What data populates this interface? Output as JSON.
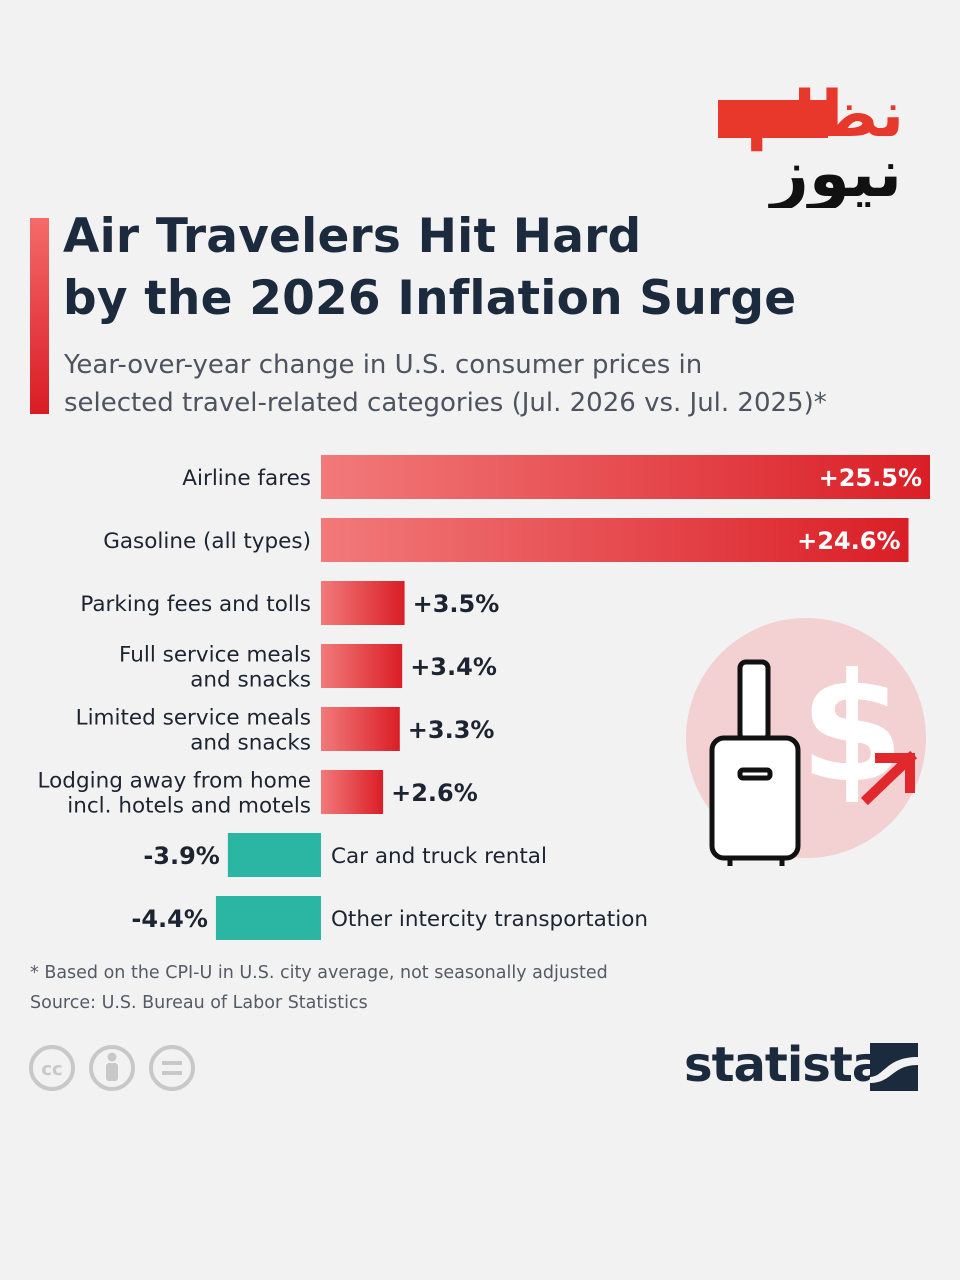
{
  "header": {
    "title_line1": "Air Travelers Hit Hard",
    "title_line2": "by the 2026 Inflation Surge",
    "subtitle_line1": "Year-over-year change in U.S. consumer prices in",
    "subtitle_line2": "selected travel-related categories (Jul. 2026 vs. Jul. 2025)*"
  },
  "logo_badge": {
    "top_text": "نظام",
    "bottom_text": "نیوز",
    "top_color": "#e8382c",
    "bottom_color": "#111111"
  },
  "illustration": {
    "icons": [
      "suitcase-icon",
      "dollar-icon",
      "arrow-up-right-icon"
    ],
    "circle_color": "#f3d0d1",
    "accent_color": "#e0282d"
  },
  "chart_data": {
    "type": "bar",
    "orientation": "horizontal",
    "unit": "%",
    "categories": [
      [
        "Airline fares"
      ],
      [
        "Gasoline (all types)"
      ],
      [
        "Parking fees and tolls"
      ],
      [
        "Full service meals",
        "and snacks"
      ],
      [
        "Limited service meals",
        "and snacks"
      ],
      [
        "Lodging away from home",
        "incl. hotels and motels"
      ],
      [
        "Car and truck rental"
      ],
      [
        "Other intercity transportation"
      ]
    ],
    "values": [
      25.5,
      24.6,
      3.5,
      3.4,
      3.3,
      2.6,
      -3.9,
      -4.4
    ],
    "value_labels": [
      "+25.5%",
      "+24.6%",
      "+3.5%",
      "+3.4%",
      "+3.3%",
      "+2.6%",
      "-3.9%",
      "-4.4%"
    ],
    "colors": {
      "positive": "#e0282d",
      "negative": "#2bb6a4"
    },
    "xlim": [
      -4.4,
      25.5
    ],
    "grid": false,
    "legend": "none"
  },
  "footer": {
    "footnote": "* Based on the CPI-U in U.S. city average, not seasonally adjusted",
    "source": "Source: U.S. Bureau of Labor Statistics",
    "license_icons": [
      "cc-icon",
      "attribution-icon",
      "no-derivatives-icon"
    ],
    "brand": "statista",
    "brand_color": "#1c2a3d"
  }
}
